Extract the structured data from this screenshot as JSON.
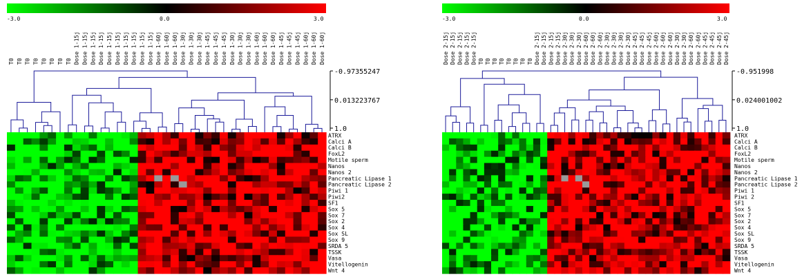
{
  "chart_data": [
    {
      "type": "heatmap",
      "panel": "left",
      "color_scale": {
        "min": -3.0,
        "mid": 0.0,
        "max": 3.0,
        "min_label": "-3.0",
        "mid_label": "0.0",
        "max_label": "3.0",
        "low_color": "#00ff00",
        "mid_color": "#000000",
        "high_color": "#ff0000"
      },
      "dendrogram_axis": [
        "-0.97355247",
        "0.013223767",
        "1.0"
      ],
      "column_groups": [
        {
          "label": "T0",
          "count": 8
        },
        {
          "label": "Dose 1-15j",
          "count": 10
        },
        {
          "label": "Dose 1-60j",
          "count": 3
        },
        {
          "label": "Dose 1-30j",
          "count": 3
        },
        {
          "label": "Dose 1-45j",
          "count": 3
        },
        {
          "label": "Dose 1-30j",
          "count": 3
        },
        {
          "label": "Dose 1-60j",
          "count": 3
        },
        {
          "label": "Dose 1-45j",
          "count": 3
        },
        {
          "label": "Dose 1-60j",
          "count": 3
        }
      ],
      "genes": [
        "ATRX",
        "Calci A",
        "Calci B",
        "FoxL2",
        "Motile sperm",
        "Nanos",
        "Nanos 2",
        "Pancreatic Lipase 1",
        "Pancreatic Lipase 2",
        "Piwi 1",
        "Piwi2",
        "SF1",
        "Sox 5",
        "Sox 7",
        "Sox 2",
        "Sox 4",
        "Sox SL",
        "Sox 9",
        "SRDA 5",
        "TSSK",
        "Vasa",
        "Vitellogenin",
        "Wnt 4"
      ],
      "dendrogram_colors": {
        "line": "#1a1a99"
      }
    },
    {
      "type": "heatmap",
      "panel": "right",
      "color_scale": {
        "min": -3.0,
        "mid": 0.0,
        "max": 3.0,
        "min_label": "-3.0",
        "mid_label": "0.0",
        "max_label": "3.0",
        "low_color": "#00ff00",
        "mid_color": "#000000",
        "high_color": "#ff0000"
      },
      "dendrogram_axis": [
        "-0.951998",
        "0.024001002",
        "1.0"
      ],
      "column_groups": [
        {
          "label": "Dose 2-15j",
          "count": 5
        },
        {
          "label": "T0",
          "count": 8
        },
        {
          "label": "Dose 2-15j",
          "count": 4
        },
        {
          "label": "Dose 2-30j",
          "count": 3
        },
        {
          "label": "Dose 2-60j",
          "count": 3
        },
        {
          "label": "Dose 2-30j",
          "count": 4
        },
        {
          "label": "Dose 2-45j",
          "count": 3
        },
        {
          "label": "Dose 2-60j",
          "count": 3
        },
        {
          "label": "Dose 2-30j",
          "count": 2
        },
        {
          "label": "Dose 2-60j",
          "count": 2
        },
        {
          "label": "Dose 2-45j",
          "count": 4
        }
      ],
      "genes": [
        "ATRX",
        "Calci A",
        "Calci B",
        "FoxL2",
        "Motile sperm",
        "Nanos",
        "Nanos 2",
        "Pancreatic Lipase 1",
        "Pancreatic Lipase 2",
        "Piwi 1",
        "Piwi 2",
        "SF1",
        "Sox 5",
        "Sox 7",
        "Sox 2",
        "Sox 4",
        "Sox SL",
        "Sox 9",
        "SRDA 5",
        "TSSK",
        "Vasa",
        "Vitellogenin",
        "Wnt 4"
      ],
      "dendrogram_colors": {
        "line": "#1a1a99"
      }
    }
  ]
}
